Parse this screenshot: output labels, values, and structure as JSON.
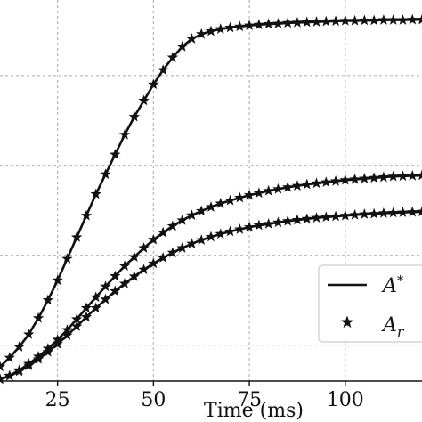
{
  "chart_data": {
    "type": "line",
    "xlabel": "Time (ms)",
    "xlim": [
      10,
      120
    ],
    "ylim": [
      0,
      1.06
    ],
    "x_ticks": [
      25,
      50,
      75,
      100
    ],
    "x_tick_labels": [
      "25",
      "50",
      "75",
      "100"
    ],
    "y_grid": [
      0.1,
      0.35,
      0.6,
      0.85
    ],
    "grid": true,
    "legend": {
      "placement": "bottom-right",
      "entries": [
        {
          "label": "A*",
          "style": "solid-line"
        },
        {
          "label": "A_r",
          "style": "star-marker"
        }
      ]
    },
    "series": [
      {
        "x": [
          10,
          12.5,
          15,
          17.5,
          20,
          22.5,
          25,
          27.5,
          30,
          32.5,
          35,
          37.5,
          40,
          42.5,
          45,
          47.5,
          50,
          52.5,
          55,
          57.5,
          60,
          62.5,
          65,
          67.5,
          70,
          72.5,
          75,
          77.5,
          80,
          82.5,
          85,
          87.5,
          90,
          92.5,
          95,
          97.5,
          100,
          102.5,
          105,
          107.5,
          110,
          112.5,
          115,
          117.5,
          120
        ],
        "y": [
          0.04,
          0.065,
          0.095,
          0.13,
          0.175,
          0.225,
          0.28,
          0.34,
          0.4,
          0.46,
          0.52,
          0.575,
          0.63,
          0.685,
          0.735,
          0.78,
          0.825,
          0.865,
          0.9,
          0.93,
          0.952,
          0.965,
          0.973,
          0.979,
          0.983,
          0.986,
          0.989,
          0.991,
          0.993,
          0.994,
          0.996,
          0.997,
          0.998,
          0.999,
          1.0,
          1.001,
          1.002,
          1.002,
          1.003,
          1.003,
          1.004,
          1.004,
          1.004,
          1.005,
          1.005
        ]
      },
      {
        "x": [
          10,
          12.5,
          15,
          17.5,
          20,
          22.5,
          25,
          27.5,
          30,
          32.5,
          35,
          37.5,
          40,
          42.5,
          45,
          47.5,
          50,
          52.5,
          55,
          57.5,
          60,
          62.5,
          65,
          67.5,
          70,
          72.5,
          75,
          77.5,
          80,
          82.5,
          85,
          87.5,
          90,
          92.5,
          95,
          97.5,
          100,
          102.5,
          105,
          107.5,
          110,
          112.5,
          115,
          117.5,
          120
        ],
        "y": [
          0.005,
          0.015,
          0.03,
          0.048,
          0.068,
          0.09,
          0.115,
          0.142,
          0.172,
          0.203,
          0.233,
          0.263,
          0.292,
          0.32,
          0.345,
          0.37,
          0.393,
          0.413,
          0.431,
          0.447,
          0.461,
          0.473,
          0.484,
          0.494,
          0.502,
          0.51,
          0.517,
          0.523,
          0.529,
          0.534,
          0.539,
          0.543,
          0.547,
          0.55,
          0.553,
          0.556,
          0.559,
          0.561,
          0.563,
          0.565,
          0.567,
          0.569,
          0.57,
          0.571,
          0.572
        ]
      },
      {
        "x": [
          10,
          12.5,
          15,
          17.5,
          20,
          22.5,
          25,
          27.5,
          30,
          32.5,
          35,
          37.5,
          40,
          42.5,
          45,
          47.5,
          50,
          52.5,
          55,
          57.5,
          60,
          62.5,
          65,
          67.5,
          70,
          72.5,
          75,
          77.5,
          80,
          82.5,
          85,
          87.5,
          90,
          92.5,
          95,
          97.5,
          100,
          102.5,
          105,
          107.5,
          110,
          112.5,
          115,
          117.5,
          120
        ],
        "y": [
          0.005,
          0.014,
          0.027,
          0.043,
          0.061,
          0.081,
          0.103,
          0.127,
          0.152,
          0.178,
          0.203,
          0.227,
          0.25,
          0.271,
          0.291,
          0.31,
          0.327,
          0.343,
          0.357,
          0.37,
          0.382,
          0.392,
          0.401,
          0.409,
          0.416,
          0.422,
          0.428,
          0.433,
          0.437,
          0.441,
          0.445,
          0.448,
          0.451,
          0.454,
          0.456,
          0.458,
          0.46,
          0.462,
          0.464,
          0.465,
          0.467,
          0.468,
          0.469,
          0.47,
          0.471
        ]
      }
    ]
  }
}
